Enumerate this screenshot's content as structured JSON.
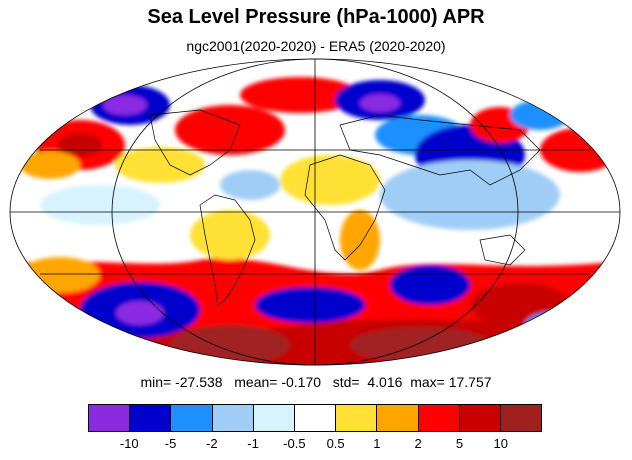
{
  "title": "Sea Level Pressure (hPa-1000) APR",
  "subtitle": "ngc2001(2020-2020) - ERA5 (2020-2020)",
  "stats": {
    "min_label": "min=",
    "min": "-27.538",
    "mean_label": "mean=",
    "mean": "-0.170",
    "std_label": "std=",
    "std": "4.016",
    "max_label": "max=",
    "max": "17.757"
  },
  "colorbar": {
    "colors": [
      "#8a2be2",
      "#0000cd",
      "#1e90ff",
      "#a0cdf5",
      "#d6f3ff",
      "#ffffff",
      "#ffe135",
      "#ffa500",
      "#ff0000",
      "#c80000",
      "#a02020"
    ],
    "labels": [
      "-10",
      "-5",
      "-2",
      "-1",
      "-0.5",
      "0.5",
      "1",
      "2",
      "5",
      "10"
    ]
  },
  "map": {
    "projection": "Mollweide",
    "central_longitude": "0"
  }
}
